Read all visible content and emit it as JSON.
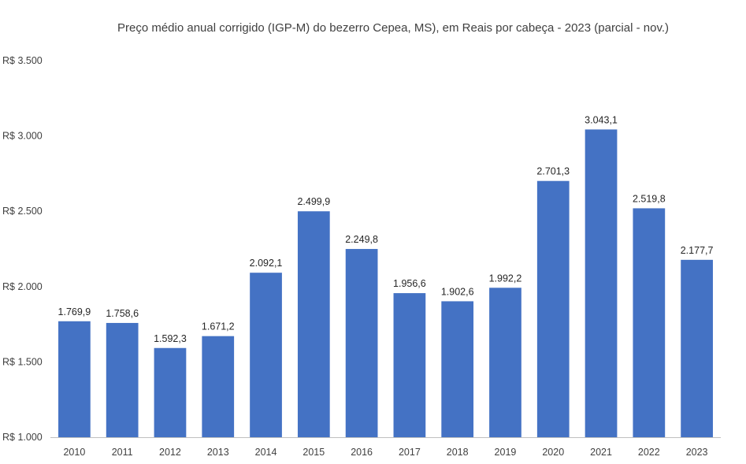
{
  "chart_data": {
    "type": "bar",
    "title": "Preço médio anual corrigido (IGP-M) do bezerro Cepea, MS), em Reais por cabeça - 2023 (parcial - nov.)",
    "xlabel": "",
    "ylabel": "",
    "categories": [
      "2010",
      "2011",
      "2012",
      "2013",
      "2014",
      "2015",
      "2016",
      "2017",
      "2018",
      "2019",
      "2020",
      "2021",
      "2022",
      "2023"
    ],
    "values": [
      1769.9,
      1758.6,
      1592.3,
      1671.2,
      2092.1,
      2499.9,
      2249.8,
      1956.6,
      1902.6,
      1992.2,
      2701.3,
      3043.1,
      2519.8,
      2177.7
    ],
    "data_labels": [
      "1.769,9",
      "1.758,6",
      "1.592,3",
      "1.671,2",
      "2.092,1",
      "2.499,9",
      "2.249,8",
      "1.956,6",
      "1.902,6",
      "1.992,2",
      "2.701,3",
      "3.043,1",
      "2.519,8",
      "2.177,7"
    ],
    "ylim": [
      1000,
      3500
    ],
    "yticks": [
      1000,
      1500,
      2000,
      2500,
      3000,
      3500
    ],
    "ytick_labels": [
      "R$ 1.000",
      "R$ 1.500",
      "R$ 2.000",
      "R$ 2.500",
      "R$ 3.000",
      "R$ 3.500"
    ],
    "grid": false,
    "legend": "none",
    "bar_color": "#4472C4"
  }
}
